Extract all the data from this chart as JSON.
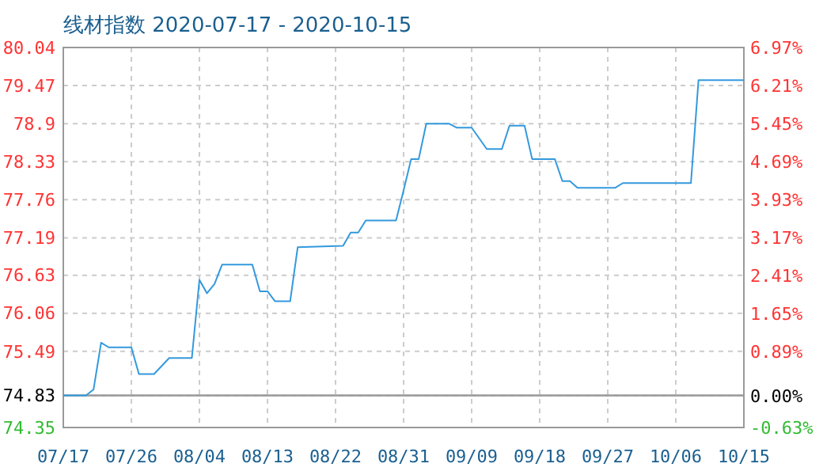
{
  "chart_data": {
    "type": "line",
    "title": "线材指数 2020-07-17 - 2020-10-15",
    "x": [
      "2020-07-17",
      "2020-07-20",
      "2020-07-21",
      "2020-07-22",
      "2020-07-23",
      "2020-07-26",
      "2020-07-27",
      "2020-07-29",
      "2020-07-31",
      "2020-08-03",
      "2020-08-04",
      "2020-08-05",
      "2020-08-06",
      "2020-08-07",
      "2020-08-11",
      "2020-08-12",
      "2020-08-13",
      "2020-08-14",
      "2020-08-16",
      "2020-08-17",
      "2020-08-23",
      "2020-08-24",
      "2020-08-25",
      "2020-08-26",
      "2020-08-30",
      "2020-08-31",
      "2020-09-01",
      "2020-09-02",
      "2020-09-03",
      "2020-09-06",
      "2020-09-07",
      "2020-09-09",
      "2020-09-11",
      "2020-09-13",
      "2020-09-14",
      "2020-09-16",
      "2020-09-17",
      "2020-09-20",
      "2020-09-21",
      "2020-09-22",
      "2020-09-23",
      "2020-09-28",
      "2020-09-29",
      "2020-10-08",
      "2020-10-09",
      "2020-10-15"
    ],
    "series": [
      {
        "color": "#3399dd",
        "values": [
          74.83,
          74.83,
          74.92,
          75.62,
          75.55,
          75.55,
          75.15,
          75.15,
          75.39,
          75.39,
          76.56,
          76.36,
          76.5,
          76.79,
          76.79,
          76.39,
          76.39,
          76.24,
          76.24,
          77.05,
          77.07,
          77.27,
          77.27,
          77.45,
          77.45,
          77.9,
          78.37,
          78.37,
          78.9,
          78.9,
          78.84,
          78.84,
          78.52,
          78.52,
          78.87,
          78.87,
          78.37,
          78.37,
          78.04,
          78.04,
          77.94,
          77.94,
          78.01,
          78.01,
          79.55,
          79.55
        ]
      }
    ],
    "xlim": [
      "2020-07-17",
      "2020-10-15"
    ],
    "xticks": [
      {
        "value": "2020-07-17",
        "label": "07/17"
      },
      {
        "value": "2020-07-26",
        "label": "07/26"
      },
      {
        "value": "2020-08-04",
        "label": "08/04"
      },
      {
        "value": "2020-08-13",
        "label": "08/13"
      },
      {
        "value": "2020-08-22",
        "label": "08/22"
      },
      {
        "value": "2020-08-31",
        "label": "08/31"
      },
      {
        "value": "2020-09-09",
        "label": "09/09"
      },
      {
        "value": "2020-09-18",
        "label": "09/18"
      },
      {
        "value": "2020-09-27",
        "label": "09/27"
      },
      {
        "value": "2020-10-06",
        "label": "10/06"
      },
      {
        "value": "2020-10-15",
        "label": "10/15"
      }
    ],
    "ylim": [
      74.35,
      80.04
    ],
    "yticks": [
      74.35,
      74.83,
      75.49,
      76.06,
      76.63,
      77.19,
      77.76,
      78.33,
      78.9,
      79.47,
      80.04
    ],
    "y2lim": [
      -0.63,
      6.97
    ],
    "y2ticks": [
      {
        "value": -0.63,
        "label": "-0.63%"
      },
      {
        "value": 0,
        "label": "0.00%"
      },
      {
        "value": 0.89,
        "label": "0.89%"
      },
      {
        "value": 1.65,
        "label": "1.65%"
      },
      {
        "value": 2.41,
        "label": "2.41%"
      },
      {
        "value": 3.17,
        "label": "3.17%"
      },
      {
        "value": 3.93,
        "label": "3.93%"
      },
      {
        "value": 4.69,
        "label": "4.69%"
      },
      {
        "value": 5.45,
        "label": "5.45%"
      },
      {
        "value": 6.21,
        "label": "6.21%"
      },
      {
        "value": 6.97,
        "label": "6.97%"
      }
    ],
    "ref_lines": [
      {
        "axis": "y",
        "value": 74.83,
        "color": "#999999"
      }
    ],
    "grid": true,
    "line_style": "solid"
  }
}
